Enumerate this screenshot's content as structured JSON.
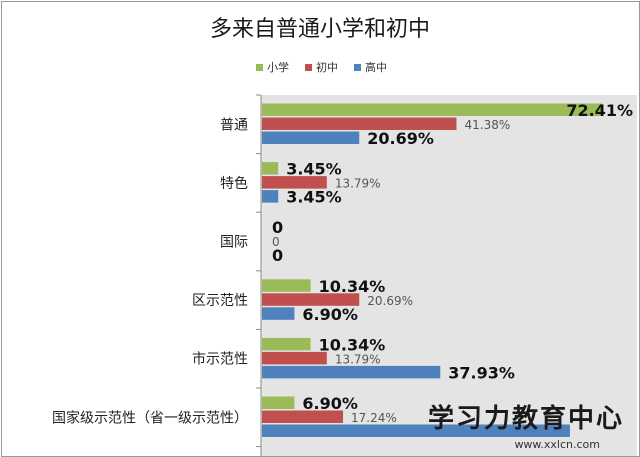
{
  "chart_data": {
    "type": "bar",
    "orientation": "horizontal",
    "title": "多来自普通小学和初中",
    "categories": [
      "普通",
      "特色",
      "国际",
      "区示范性",
      "市示范性",
      "国家级示范性（省一级示范性）"
    ],
    "series": [
      {
        "name": "小学",
        "color": "#9bbb59",
        "values": [
          72.41,
          3.45,
          0,
          10.34,
          10.34,
          6.9
        ],
        "labels": [
          "72.41%",
          "3.45%",
          "0",
          "10.34%",
          "10.34%",
          "6.90%"
        ]
      },
      {
        "name": "初中",
        "color": "#c0504d",
        "values": [
          41.38,
          13.79,
          0,
          20.69,
          13.79,
          17.24
        ],
        "labels": [
          "41.38%",
          "13.79%",
          "0",
          "20.69%",
          "13.79%",
          "17.24%"
        ]
      },
      {
        "name": "高中",
        "color": "#4f81bd",
        "values": [
          20.69,
          3.45,
          0,
          6.9,
          37.93,
          65.52
        ],
        "labels": [
          "20.69%",
          "3.45%",
          "0",
          "6.90%",
          "37.93%",
          ""
        ]
      }
    ],
    "xlim": [
      0,
      80
    ],
    "grid": false,
    "legend": "top-center"
  },
  "watermark": {
    "text": "学习力教育中心",
    "url": "www.xxlcn.com"
  }
}
